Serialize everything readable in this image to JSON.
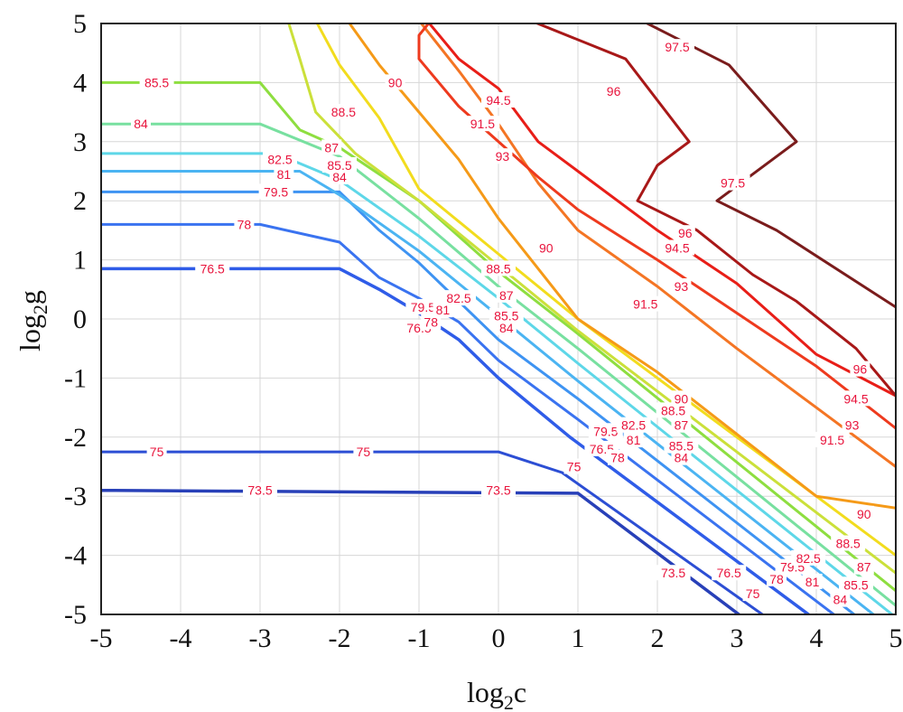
{
  "chart_data": {
    "type": "contour",
    "title": "",
    "xlabel": {
      "base": "log",
      "sub": "2",
      "var": "c"
    },
    "ylabel": {
      "base": "log",
      "sub": "2",
      "var": "g"
    },
    "xlim": [
      -5,
      5
    ],
    "ylim": [
      -5,
      5
    ],
    "grid": true,
    "xticks": [
      -5,
      -4,
      -3,
      -2,
      -1,
      0,
      1,
      2,
      3,
      4,
      5
    ],
    "yticks": [
      -5,
      -4,
      -3,
      -2,
      -1,
      0,
      1,
      2,
      3,
      4,
      5
    ],
    "label_color": "#e8143c",
    "levels": [
      {
        "level": "73.5",
        "color": "#2840b8",
        "width": 3.5,
        "segments": [
          [
            [
              -5,
              -2.9
            ],
            [
              1,
              -2.95
            ],
            [
              5,
              -7
            ]
          ]
        ],
        "labels": [
          [
            -3,
            -2.9
          ],
          [
            0,
            -2.9
          ],
          [
            2.2,
            -4.3
          ]
        ]
      },
      {
        "level": "75",
        "color": "#2c4ed4",
        "width": 3,
        "segments": [
          [
            [
              -5,
              -2.25
            ],
            [
              0,
              -2.25
            ],
            [
              0.8,
              -2.6
            ],
            [
              5,
              -6.6
            ]
          ]
        ],
        "labels": [
          [
            -4.3,
            -2.25
          ],
          [
            -1.7,
            -2.25
          ],
          [
            0.95,
            -2.5
          ],
          [
            3.2,
            -4.65
          ]
        ]
      },
      {
        "level": "76.5",
        "color": "#2f5ce8",
        "width": 3.5,
        "segments": [
          [
            [
              -5,
              0.85
            ],
            [
              -2,
              0.85
            ],
            [
              -1.5,
              0.5
            ],
            [
              -1,
              0.1
            ],
            [
              -0.5,
              -0.35
            ],
            [
              0,
              -1
            ],
            [
              0.9,
              -2
            ],
            [
              5,
              -6.1
            ]
          ]
        ],
        "labels": [
          [
            -3.6,
            0.85
          ],
          [
            -1.0,
            -0.15
          ],
          [
            1.3,
            -2.2
          ],
          [
            2.9,
            -4.3
          ]
        ]
      },
      {
        "level": "78",
        "color": "#3a73f0",
        "width": 3,
        "segments": [
          [
            [
              -5,
              1.6
            ],
            [
              -3,
              1.6
            ],
            [
              -2,
              1.3
            ],
            [
              -1.5,
              0.7
            ],
            [
              -1,
              0.35
            ],
            [
              -0.5,
              -0.05
            ],
            [
              0,
              -0.7
            ],
            [
              1,
              -1.7
            ],
            [
              5,
              -5.8
            ]
          ]
        ],
        "labels": [
          [
            -3.2,
            1.6
          ],
          [
            -0.85,
            -0.05
          ],
          [
            1.5,
            -2.35
          ],
          [
            3.5,
            -4.4
          ]
        ]
      },
      {
        "level": "79.5",
        "color": "#3e93f2",
        "width": 3,
        "segments": [
          [
            [
              -5,
              2.15
            ],
            [
              -2,
              2.15
            ],
            [
              -1.5,
              1.5
            ],
            [
              -1,
              0.95
            ],
            [
              -0.5,
              0.3
            ],
            [
              0,
              -0.35
            ],
            [
              1,
              -1.35
            ],
            [
              5,
              -5.55
            ]
          ]
        ],
        "labels": [
          [
            -2.8,
            2.15
          ],
          [
            -0.95,
            0.2
          ],
          [
            1.35,
            -1.9
          ],
          [
            3.7,
            -4.2
          ]
        ]
      },
      {
        "level": "81",
        "color": "#4bb4f2",
        "width": 3,
        "segments": [
          [
            [
              -5,
              2.5
            ],
            [
              -2.5,
              2.5
            ],
            [
              -2,
              2.1
            ],
            [
              -1,
              1.15
            ],
            [
              0,
              0.05
            ],
            [
              1,
              -1.05
            ],
            [
              5,
              -5.3
            ]
          ]
        ],
        "labels": [
          [
            -2.7,
            2.45
          ],
          [
            -0.7,
            0.15
          ],
          [
            1.7,
            -2.05
          ],
          [
            3.95,
            -4.45
          ]
        ]
      },
      {
        "level": "82.5",
        "color": "#5ed7e8",
        "width": 3,
        "segments": [
          [
            [
              -5,
              2.8
            ],
            [
              -2.8,
              2.8
            ],
            [
              -2,
              2.35
            ],
            [
              -1,
              1.4
            ],
            [
              0,
              0.35
            ],
            [
              1,
              -0.75
            ],
            [
              5,
              -5.05
            ]
          ]
        ],
        "labels": [
          [
            -2.75,
            2.7
          ],
          [
            -0.5,
            0.35
          ],
          [
            1.7,
            -1.8
          ],
          [
            3.9,
            -4.05
          ]
        ]
      },
      {
        "level": "84",
        "color": "#78e0a0",
        "width": 3,
        "segments": [
          [
            [
              -5,
              3.3
            ],
            [
              -3,
              3.3
            ],
            [
              -2,
              2.75
            ],
            [
              -1,
              1.7
            ],
            [
              0,
              0.55
            ],
            [
              1,
              -0.5
            ],
            [
              5,
              -4.85
            ]
          ]
        ],
        "labels": [
          [
            -4.5,
            3.3
          ],
          [
            -2,
            2.4
          ],
          [
            0.1,
            -0.15
          ],
          [
            2.3,
            -2.35
          ],
          [
            4.3,
            -4.75
          ]
        ]
      },
      {
        "level": "85.5",
        "color": "#8ede40",
        "width": 3,
        "segments": [
          [
            [
              -5,
              4.0
            ],
            [
              -3,
              4.0
            ],
            [
              -2.5,
              3.2
            ],
            [
              -2,
              2.9
            ],
            [
              -1,
              2
            ],
            [
              0,
              0.8
            ],
            [
              1,
              -0.25
            ],
            [
              5,
              -4.6
            ]
          ]
        ],
        "labels": [
          [
            -4.3,
            4.0
          ],
          [
            -2.0,
            2.6
          ],
          [
            0.1,
            0.05
          ],
          [
            2.3,
            -2.15
          ],
          [
            4.5,
            -4.5
          ]
        ]
      },
      {
        "level": "87",
        "color": "#cbe03a",
        "width": 3,
        "segments": [
          [
            [
              -2.65,
              5.05
            ],
            [
              -2.5,
              4.4
            ],
            [
              -2.3,
              3.5
            ],
            [
              -1.8,
              2.8
            ],
            [
              -1,
              2
            ],
            [
              0,
              0.9
            ],
            [
              1,
              -0.2
            ],
            [
              5,
              -4.3
            ]
          ]
        ],
        "labels": [
          [
            -2.1,
            2.9
          ],
          [
            0.1,
            0.4
          ],
          [
            2.3,
            -1.8
          ],
          [
            4.6,
            -4.2
          ]
        ]
      },
      {
        "level": "88.5",
        "color": "#f2dc1e",
        "width": 3,
        "segments": [
          [
            [
              -2.3,
              5.05
            ],
            [
              -2,
              4.3
            ],
            [
              -1.5,
              3.4
            ],
            [
              -1,
              2.2
            ],
            [
              0,
              1.1
            ],
            [
              1,
              0
            ],
            [
              5,
              -4.0
            ]
          ]
        ],
        "labels": [
          [
            -1.95,
            3.5
          ],
          [
            0,
            0.85
          ],
          [
            2.2,
            -1.55
          ],
          [
            4.4,
            -3.8
          ]
        ]
      },
      {
        "level": "90",
        "color": "#f59a18",
        "width": 3,
        "segments": [
          [
            [
              -1.9,
              5.05
            ],
            [
              -1.5,
              4.3
            ],
            [
              -1,
              3.5
            ],
            [
              -0.5,
              2.7
            ],
            [
              0,
              1.7
            ],
            [
              1,
              0
            ],
            [
              2,
              -0.9
            ],
            [
              4,
              -3
            ],
            [
              5,
              -3.2
            ]
          ]
        ],
        "labels": [
          [
            -1.3,
            4.0
          ],
          [
            0.6,
            1.2
          ],
          [
            2.3,
            -1.35
          ],
          [
            4.6,
            -3.3
          ]
        ]
      },
      {
        "level": "91.5",
        "color": "#f47524",
        "width": 3,
        "segments": [
          [
            [
              -1,
              5.05
            ],
            [
              -0.5,
              4.2
            ],
            [
              0,
              3.3
            ],
            [
              0.5,
              2.3
            ],
            [
              1,
              1.5
            ],
            [
              2,
              0.55
            ],
            [
              3,
              -0.5
            ],
            [
              4,
              -1.5
            ],
            [
              5,
              -2.5
            ]
          ]
        ],
        "labels": [
          [
            -0.2,
            3.3
          ],
          [
            1.85,
            0.25
          ],
          [
            4.2,
            -2.05
          ]
        ]
      },
      {
        "level": "93",
        "color": "#ee3a1e",
        "width": 3,
        "segments": [
          [
            [
              -0.85,
              5.05
            ],
            [
              -1,
              4.8
            ],
            [
              -1,
              4.4
            ],
            [
              -0.5,
              3.6
            ],
            [
              0,
              3.0
            ],
            [
              0.5,
              2.4
            ],
            [
              1,
              1.85
            ],
            [
              2,
              1.0
            ],
            [
              3,
              0.1
            ],
            [
              4,
              -0.8
            ],
            [
              5,
              -1.85
            ]
          ]
        ],
        "labels": [
          [
            0.05,
            2.75
          ],
          [
            2.3,
            0.55
          ],
          [
            4.45,
            -1.8
          ]
        ]
      },
      {
        "level": "94.5",
        "color": "#e81e18",
        "width": 3,
        "segments": [
          [
            [
              -0.9,
              5.05
            ],
            [
              -0.5,
              4.4
            ],
            [
              0,
              3.9
            ],
            [
              0.5,
              3.0
            ],
            [
              1,
              2.5
            ],
            [
              2,
              1.5
            ],
            [
              3,
              0.6
            ],
            [
              4,
              -0.6
            ],
            [
              5,
              -1.3
            ]
          ]
        ],
        "labels": [
          [
            0,
            3.7
          ],
          [
            2.25,
            1.2
          ],
          [
            4.5,
            -1.35
          ]
        ]
      },
      {
        "level": "96",
        "color": "#a81818",
        "width": 3,
        "segments": [
          [
            [
              0.4,
              5.05
            ],
            [
              1.6,
              4.4
            ],
            [
              2.4,
              3.0
            ],
            [
              2.0,
              2.6
            ],
            [
              1.75,
              2.0
            ],
            [
              2.5,
              1.5
            ],
            [
              3.2,
              0.75
            ],
            [
              3.75,
              0.3
            ],
            [
              4.5,
              -0.5
            ],
            [
              5,
              -1.3
            ]
          ]
        ],
        "labels": [
          [
            1.45,
            3.85
          ],
          [
            2.35,
            1.45
          ],
          [
            4.55,
            -0.85
          ]
        ]
      },
      {
        "level": "97.5",
        "color": "#7a1c1c",
        "width": 3,
        "segments": [
          [
            [
              1.8,
              5.05
            ],
            [
              2.9,
              4.3
            ],
            [
              3.75,
              3.0
            ],
            [
              2.75,
              2.0
            ],
            [
              3.5,
              1.5
            ],
            [
              5,
              0.2
            ]
          ]
        ],
        "labels": [
          [
            2.25,
            4.6
          ],
          [
            2.95,
            2.3
          ]
        ]
      }
    ]
  }
}
